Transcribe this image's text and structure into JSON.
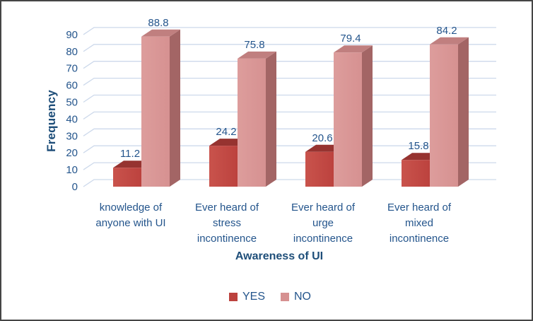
{
  "chart_data": {
    "type": "bar",
    "style": "3d-column",
    "title": "",
    "xlabel": "Awareness of UI",
    "ylabel": "Frequency",
    "ylim": [
      0,
      90
    ],
    "yticks": [
      0,
      10,
      20,
      30,
      40,
      50,
      60,
      70,
      80,
      90
    ],
    "grid": true,
    "legend_position": "bottom",
    "data_labels": true,
    "categories": [
      "knowledge of anyone with UI",
      "Ever heard of stress incontinence",
      "Ever heard of urge incontinence",
      "Ever heard of mixed incontinence"
    ],
    "category_lines": [
      [
        "knowledge of",
        "anyone with UI"
      ],
      [
        "Ever heard of",
        "stress",
        "incontinence"
      ],
      [
        "Ever heard of",
        "urge",
        "incontinence"
      ],
      [
        "Ever heard of",
        "mixed",
        "incontinence"
      ]
    ],
    "series": [
      {
        "name": "YES",
        "values": [
          11.2,
          24.2,
          20.6,
          15.8
        ],
        "labels": [
          "11.2",
          "24.2",
          "20.6",
          "15.8"
        ],
        "color_front": "#bc423e",
        "color_front_light": "#c9534c",
        "color_top": "#963330",
        "color_side": "#8a2e2b"
      },
      {
        "name": "NO",
        "values": [
          88.8,
          75.8,
          79.4,
          84.2
        ],
        "labels": [
          "88.8",
          "75.8",
          "79.4",
          "84.2"
        ],
        "color_front": "#d69191",
        "color_front_light": "#dd9d9c",
        "color_top": "#c07f7f",
        "color_side": "#a36565"
      }
    ]
  },
  "colors": {
    "text": "#24558c",
    "title_text": "#1e4e79",
    "gridline": "#cdd9eb",
    "background": "#ffffff",
    "frame_border": "#454545"
  }
}
